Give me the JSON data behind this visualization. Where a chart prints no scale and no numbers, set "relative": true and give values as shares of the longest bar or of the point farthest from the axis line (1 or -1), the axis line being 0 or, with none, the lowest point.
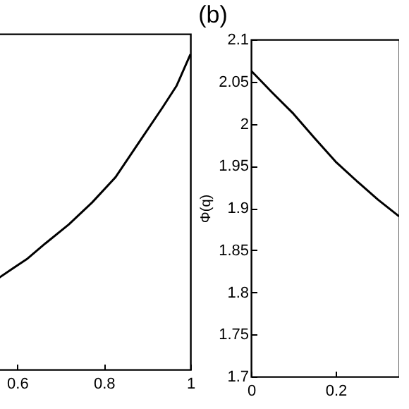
{
  "chart_data": [
    {
      "type": "line",
      "relative": true,
      "x": [
        0.557,
        0.589,
        0.622,
        0.665,
        0.719,
        0.773,
        0.827,
        0.881,
        0.935,
        0.968,
        1.0
      ],
      "xlim": [
        0.557,
        1
      ],
      "xticks": [
        0.6,
        0.8,
        1
      ],
      "series": [
        {
          "color": "#000000",
          "values": [
            0.29,
            0.32,
            0.35,
            0.4,
            0.46,
            0.53,
            0.61,
            0.72,
            0.83,
            0.9,
            1
          ]
        }
      ]
    },
    {
      "type": "line",
      "title": "(b)",
      "ylabel": "Φ(q)",
      "x": [
        0,
        0.05,
        0.1,
        0.15,
        0.2,
        0.25,
        0.3,
        0.35
      ],
      "xlim": [
        0,
        0.35
      ],
      "xticks": [
        0,
        0.2
      ],
      "ylim": [
        1.7,
        2.1
      ],
      "yticks": [
        1.7,
        1.75,
        1.8,
        1.85,
        1.9,
        1.95,
        2,
        2.05,
        2.1
      ],
      "series": [
        {
          "color": "#000000",
          "values": [
            2.063,
            2.037,
            2.012,
            1.983,
            1.955,
            1.932,
            1.91,
            1.89
          ]
        }
      ]
    }
  ]
}
